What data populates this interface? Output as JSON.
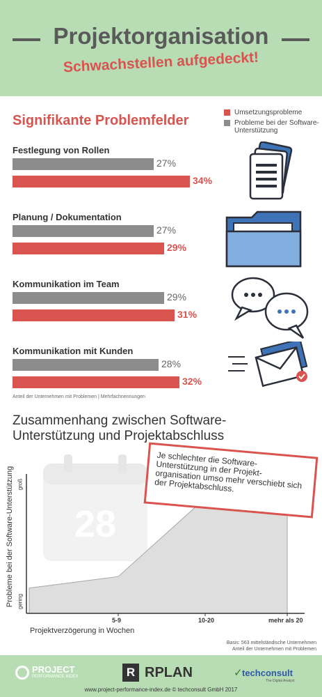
{
  "header": {
    "title": "Projektorganisation",
    "subtitle": "Schwachstellen aufgedeckt!"
  },
  "section1": {
    "title": "Signifikante Problemfelder",
    "footnote": "Anteil der Unternehmen mit Problemen | Mehrfachnennungen"
  },
  "colors": {
    "accent_red": "#d9534f",
    "bar_grey": "#8c8c8c",
    "header_green": "#b8ddb5",
    "icon_blue": "#3f73b8"
  },
  "chart_data": [
    {
      "type": "bar",
      "orientation": "horizontal",
      "title": "Signifikante Problemfelder",
      "categories": [
        "Festlegung von Rollen",
        "Planung / Dokumentation",
        "Kommunikation im Team",
        "Kommunikation mit Kunden"
      ],
      "series": [
        {
          "name": "Probleme bei der Software-Unterstützung",
          "color": "#8c8c8c",
          "values": [
            27,
            27,
            29,
            28
          ]
        },
        {
          "name": "Umsetzungsprobleme",
          "color": "#d9534f",
          "values": [
            34,
            29,
            31,
            32
          ]
        }
      ],
      "legend": [
        {
          "label": "Umsetzungsprobleme",
          "color": "#d9534f"
        },
        {
          "label": "Probleme bei der Software-Unterstützung",
          "color": "#8c8c8c"
        }
      ],
      "value_suffix": "%",
      "xlim": [
        0,
        35
      ],
      "legend_position": "top-right",
      "icons": [
        "documents-icon",
        "folder-icon",
        "speech-bubbles-icon",
        "email-icon"
      ],
      "grid": false
    },
    {
      "type": "area",
      "title": "Zusammenhang zwischen Software-Unterstützung und Projektabschluss",
      "xlabel": "Projektverzögerung in Wochen",
      "ylabel": "Probleme bei der Software-Unterstützung",
      "ytick_low": "gering",
      "ytick_high": "groß",
      "x_categories": [
        "",
        "5-9",
        "10-20",
        "mehr als 20"
      ],
      "values": [
        0.22,
        0.32,
        1.0,
        1.0
      ],
      "ylim": [
        0,
        1
      ],
      "grid": false
    }
  ],
  "section2": {
    "title_line1": "Zusammenhang zwischen Software-",
    "title_line2": "Unterstützung und Projektabschluss",
    "callout": "Je schlechter die Software-Unterstützung in der Projekt-organisation umso mehr verschiebt sich der Projektabschluss.",
    "basis_line1": "Basis: 563 mittelständische Unternehmen",
    "basis_line2": "Anteil der Unternehmen mit Problemen",
    "calendar_number": "28"
  },
  "footer": {
    "logo1_name": "PROJECT",
    "logo1_sub": "PERFORMANCE INDEX",
    "logo2_name": "RPLAN",
    "logo3_name": "techconsult",
    "logo3_sub": "The Digital Analyst",
    "url": "www.project-performance-index.de © techconsult GmbH 2017"
  }
}
